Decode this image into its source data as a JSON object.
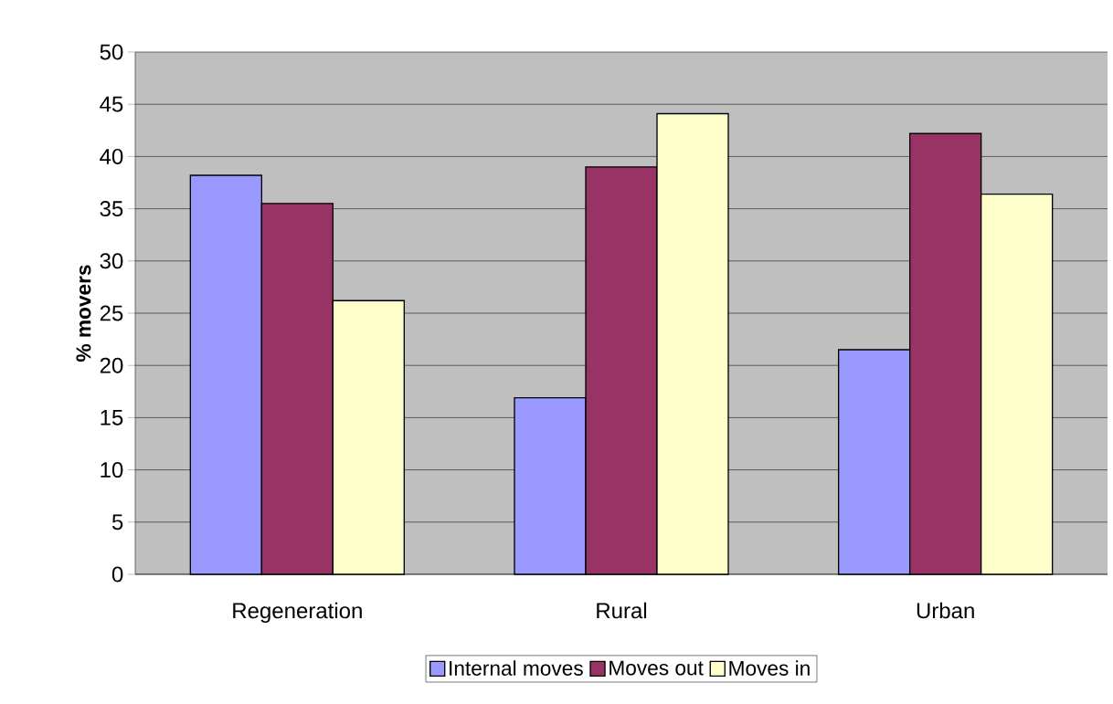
{
  "chart_data": {
    "type": "bar",
    "ylabel": "% movers",
    "categories": [
      "Regeneration",
      "Rural",
      "Urban"
    ],
    "series": [
      {
        "name": "Internal moves",
        "color": "#9999ff",
        "values": [
          38.2,
          16.9,
          21.5
        ]
      },
      {
        "name": "Moves out",
        "color": "#993366",
        "values": [
          35.5,
          39.0,
          42.2
        ]
      },
      {
        "name": "Moves in",
        "color": "#ffffcc",
        "values": [
          26.2,
          44.1,
          36.4
        ]
      }
    ],
    "ylim": [
      0,
      50
    ],
    "yticks": [
      0,
      5,
      10,
      15,
      20,
      25,
      30,
      35,
      40,
      45,
      50
    ],
    "grid": "y",
    "legend": "bottom"
  }
}
